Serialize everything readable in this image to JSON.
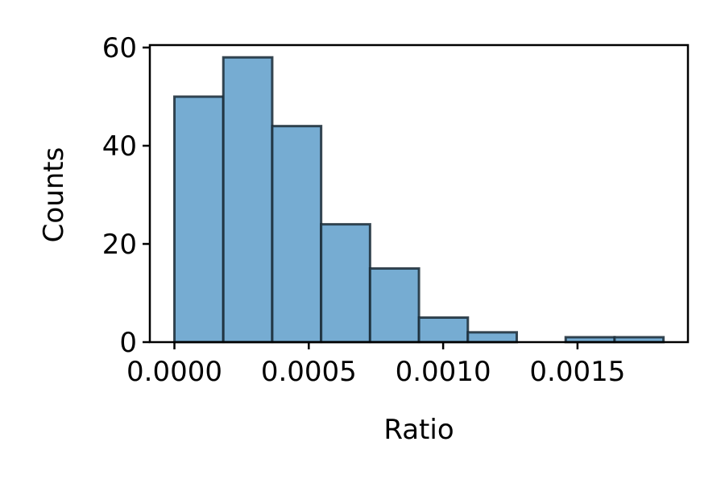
{
  "chart_data": {
    "type": "bar",
    "title": "",
    "xlabel": "Ratio",
    "ylabel": "Counts",
    "bin_edges": [
      0.0,
      0.000182,
      0.000364,
      0.000546,
      0.000728,
      0.00091,
      0.001092,
      0.001274,
      0.001456,
      0.001638,
      0.00182
    ],
    "values": [
      50,
      58,
      44,
      24,
      15,
      5,
      2,
      0,
      1,
      1
    ],
    "xlim": [
      -9.15e-05,
      0.001911
    ],
    "ylim": [
      0,
      60.5
    ],
    "xticks": [
      0.0,
      0.0005,
      0.001,
      0.0015
    ],
    "xtick_labels": [
      "0.0000",
      "0.0005",
      "0.0010",
      "0.0015"
    ],
    "yticks": [
      0,
      20,
      40,
      60
    ],
    "ytick_labels": [
      "0",
      "20",
      "40",
      "60"
    ],
    "grid": false,
    "colors": {
      "bar_fill": "#76acd2",
      "bar_edge": "#1a2a36"
    }
  }
}
